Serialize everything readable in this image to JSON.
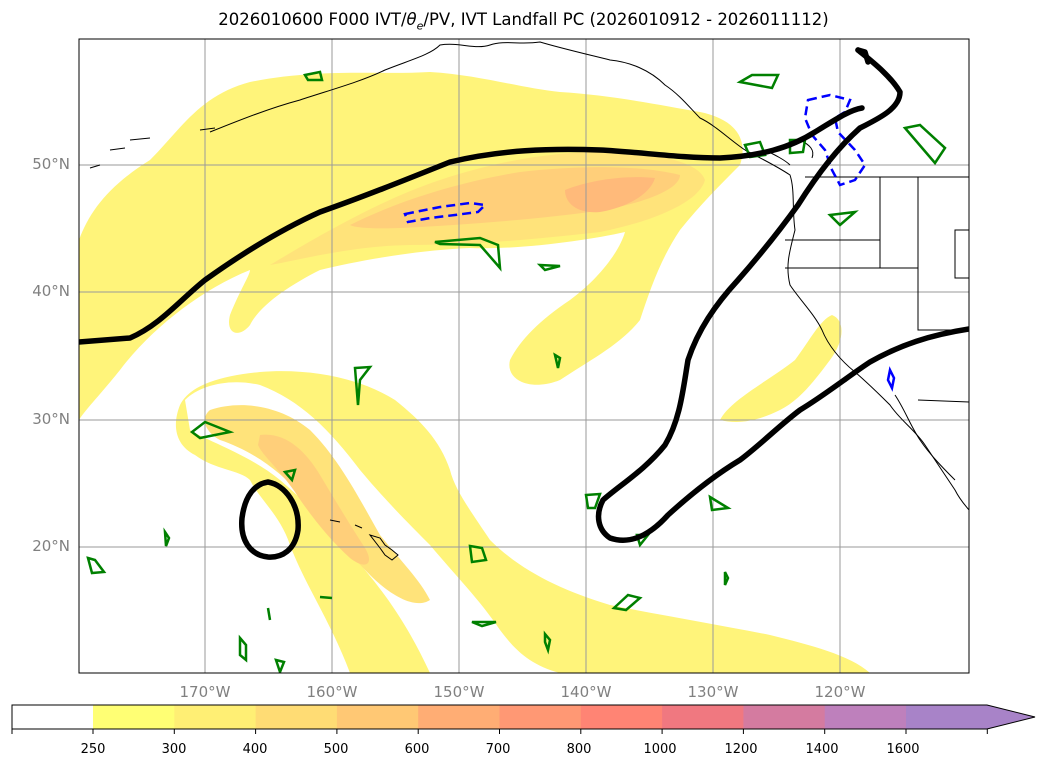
{
  "title": {
    "prefix": "2026010600 F000 IVT/",
    "theta": "θ",
    "theta_sub": "e",
    "suffix": "/PV, IVT Landfall PC (2026010912 - 2026011112)"
  },
  "lat_labels": [
    "50°N",
    "40°N",
    "30°N",
    "20°N"
  ],
  "lon_labels": [
    "170°W",
    "160°W",
    "150°W",
    "140°W",
    "130°W",
    "120°W"
  ],
  "colorbar": {
    "ticks": [
      "250",
      "300",
      "400",
      "500",
      "600",
      "700",
      "800",
      "1000",
      "1200",
      "1400",
      "1600"
    ],
    "colors": [
      "#ffff74",
      "#ffef74",
      "#ffdc74",
      "#ffc874",
      "#ffad74",
      "#ff9874",
      "#ff8474",
      "#f07880",
      "#d47ba0",
      "#be80bc",
      "#a883c8"
    ]
  },
  "map_colors": {
    "ivt_250": "#fff47a",
    "ivt_300": "#ffe37a",
    "ivt_400": "#ffcf7a",
    "ivt_500": "#ffba7a",
    "pc_contour": "#000000",
    "pv_green": "#008000",
    "pv_blue": "#0000ff"
  }
}
